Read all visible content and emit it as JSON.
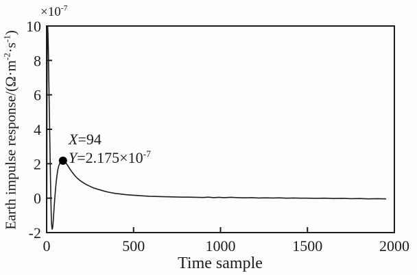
{
  "figure": {
    "colors": {
      "background": "#fdfdfd",
      "axis": "#1c1c1c",
      "line": "#1c1c1c",
      "marker": "#000000",
      "text": "#1c1c1c"
    }
  },
  "chart_data": {
    "type": "line",
    "title": "",
    "xlabel": "Time sample",
    "ylabel": "Earth impulse response/(Ω·m⁻²·s⁻¹)",
    "ylabel_parts": {
      "p1": "Earth impulse response/(Ω·m",
      "e1": "-2",
      "p2": "·s",
      "e2": "-1",
      "p3": ")"
    },
    "y_scale_factor": "×10⁻⁷",
    "y_scale_parts": {
      "base": "×10",
      "exp": "-7"
    },
    "y_unit_multiplier": 1e-07,
    "xlim": [
      0,
      2000
    ],
    "ylim": [
      -2,
      10
    ],
    "xticks": [
      0,
      500,
      1000,
      1500,
      2000
    ],
    "yticks": [
      10,
      8,
      6,
      4,
      2,
      0,
      -2
    ],
    "grid": false,
    "legend": null,
    "marker_point": {
      "x": 94,
      "y": 2.175
    },
    "annotation": {
      "line1_var": "X",
      "line1_rest": "=94",
      "line2_var": "Y",
      "line2_rest": "=2.175",
      "line2_scale": "×10",
      "line2_exp": "-7",
      "full_text": "X=94  Y=2.175×10⁻⁷"
    },
    "series": [
      {
        "name": "earth impulse response",
        "points": [
          [
            1,
            0.2
          ],
          [
            2,
            5.0
          ],
          [
            3,
            8.4
          ],
          [
            4,
            9.7
          ],
          [
            5,
            10.0
          ],
          [
            6,
            10.0
          ],
          [
            8,
            9.5
          ],
          [
            10,
            8.6
          ],
          [
            12,
            7.4
          ],
          [
            14,
            6.1
          ],
          [
            16,
            4.8
          ],
          [
            18,
            3.5
          ],
          [
            20,
            2.3
          ],
          [
            22,
            1.1
          ],
          [
            24,
            0.1
          ],
          [
            26,
            -0.8
          ],
          [
            28,
            -1.4
          ],
          [
            30,
            -1.7
          ],
          [
            32,
            -1.8
          ],
          [
            34,
            -1.75
          ],
          [
            36,
            -1.6
          ],
          [
            38,
            -1.35
          ],
          [
            40,
            -1.05
          ],
          [
            43,
            -0.55
          ],
          [
            46,
            -0.1
          ],
          [
            50,
            0.4
          ],
          [
            54,
            0.85
          ],
          [
            58,
            1.2
          ],
          [
            62,
            1.5
          ],
          [
            66,
            1.72
          ],
          [
            70,
            1.88
          ],
          [
            75,
            2.0
          ],
          [
            80,
            2.09
          ],
          [
            85,
            2.14
          ],
          [
            90,
            2.165
          ],
          [
            94,
            2.175
          ],
          [
            98,
            2.17
          ],
          [
            104,
            2.12
          ],
          [
            110,
            2.05
          ],
          [
            118,
            1.95
          ],
          [
            126,
            1.82
          ],
          [
            135,
            1.68
          ],
          [
            145,
            1.53
          ],
          [
            155,
            1.4
          ],
          [
            165,
            1.28
          ],
          [
            175,
            1.17
          ],
          [
            185,
            1.08
          ],
          [
            200,
            0.97
          ],
          [
            215,
            0.87
          ],
          [
            230,
            0.78
          ],
          [
            245,
            0.71
          ],
          [
            260,
            0.64
          ],
          [
            275,
            0.58
          ],
          [
            290,
            0.53
          ],
          [
            310,
            0.47
          ],
          [
            330,
            0.41
          ],
          [
            350,
            0.36
          ],
          [
            375,
            0.31
          ],
          [
            400,
            0.27
          ],
          [
            425,
            0.24
          ],
          [
            450,
            0.21
          ],
          [
            475,
            0.19
          ],
          [
            500,
            0.17
          ],
          [
            530,
            0.15
          ],
          [
            560,
            0.13
          ],
          [
            590,
            0.11
          ],
          [
            620,
            0.1
          ],
          [
            660,
            0.09
          ],
          [
            700,
            0.08
          ],
          [
            740,
            0.07
          ],
          [
            780,
            0.06
          ],
          [
            820,
            0.06
          ],
          [
            860,
            0.05
          ],
          [
            900,
            0.04
          ],
          [
            930,
            0.06
          ],
          [
            960,
            0.03
          ],
          [
            990,
            0.05
          ],
          [
            1020,
            0.03
          ],
          [
            1060,
            0.05
          ],
          [
            1100,
            0.03
          ],
          [
            1140,
            0.02
          ],
          [
            1180,
            0.03
          ],
          [
            1220,
            0.01
          ],
          [
            1260,
            0.02
          ],
          [
            1300,
            0.01
          ],
          [
            1340,
            0.02
          ],
          [
            1380,
            0.0
          ],
          [
            1420,
            0.01
          ],
          [
            1460,
            0.0
          ],
          [
            1500,
            0.0
          ],
          [
            1550,
            -0.01
          ],
          [
            1600,
            0.0
          ],
          [
            1650,
            -0.02
          ],
          [
            1700,
            -0.01
          ],
          [
            1750,
            -0.03
          ],
          [
            1800,
            -0.02
          ],
          [
            1850,
            -0.04
          ],
          [
            1900,
            -0.03
          ],
          [
            1950,
            -0.04
          ]
        ]
      }
    ]
  }
}
